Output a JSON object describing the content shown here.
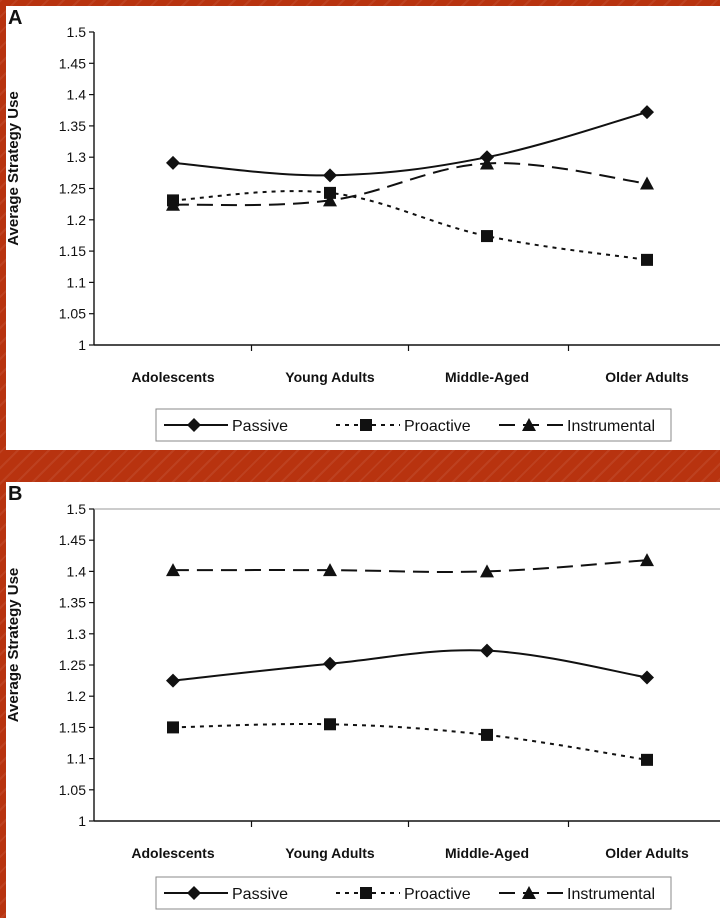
{
  "chart_data": [
    {
      "panel": "A",
      "type": "line",
      "categories": [
        "Adolescents",
        "Young Adults",
        "Middle-Aged",
        "Older Adults"
      ],
      "ylabel": "Average Strategy Use",
      "ylim": [
        1,
        1.5
      ],
      "yticks": [
        "1.5",
        "1.45",
        "1.4",
        "1.35",
        "1.3",
        "1.25",
        "1.2",
        "1.15",
        "1.1",
        "1.05",
        "1"
      ],
      "legend_placement": "bottom",
      "series": [
        {
          "name": "Passive",
          "marker": "diamond",
          "dash": "solid",
          "values": [
            1.291,
            1.271,
            1.3,
            1.372
          ]
        },
        {
          "name": "Proactive",
          "marker": "square",
          "dash": "dotted",
          "values": [
            1.231,
            1.243,
            1.174,
            1.136
          ]
        },
        {
          "name": "Instrumental",
          "marker": "triangle",
          "dash": "dashed",
          "values": [
            1.224,
            1.231,
            1.29,
            1.258
          ]
        }
      ]
    },
    {
      "panel": "B",
      "type": "line",
      "categories": [
        "Adolescents",
        "Young Adults",
        "Middle-Aged",
        "Older Adults"
      ],
      "ylabel": "Average Strategy Use",
      "ylim": [
        1,
        1.5
      ],
      "yticks": [
        "1.5",
        "1.45",
        "1.4",
        "1.35",
        "1.3",
        "1.25",
        "1.2",
        "1.15",
        "1.1",
        "1.05",
        "1"
      ],
      "legend_placement": "bottom",
      "series": [
        {
          "name": "Passive",
          "marker": "diamond",
          "dash": "solid",
          "values": [
            1.225,
            1.252,
            1.273,
            1.23
          ]
        },
        {
          "name": "Proactive",
          "marker": "square",
          "dash": "dotted",
          "values": [
            1.15,
            1.155,
            1.138,
            1.098
          ]
        },
        {
          "name": "Instrumental",
          "marker": "triangle",
          "dash": "dashed",
          "values": [
            1.402,
            1.402,
            1.4,
            1.418
          ]
        }
      ]
    }
  ],
  "colors": {
    "background": "#b8330f",
    "panel": "#ffffff",
    "ink": "#111111"
  }
}
